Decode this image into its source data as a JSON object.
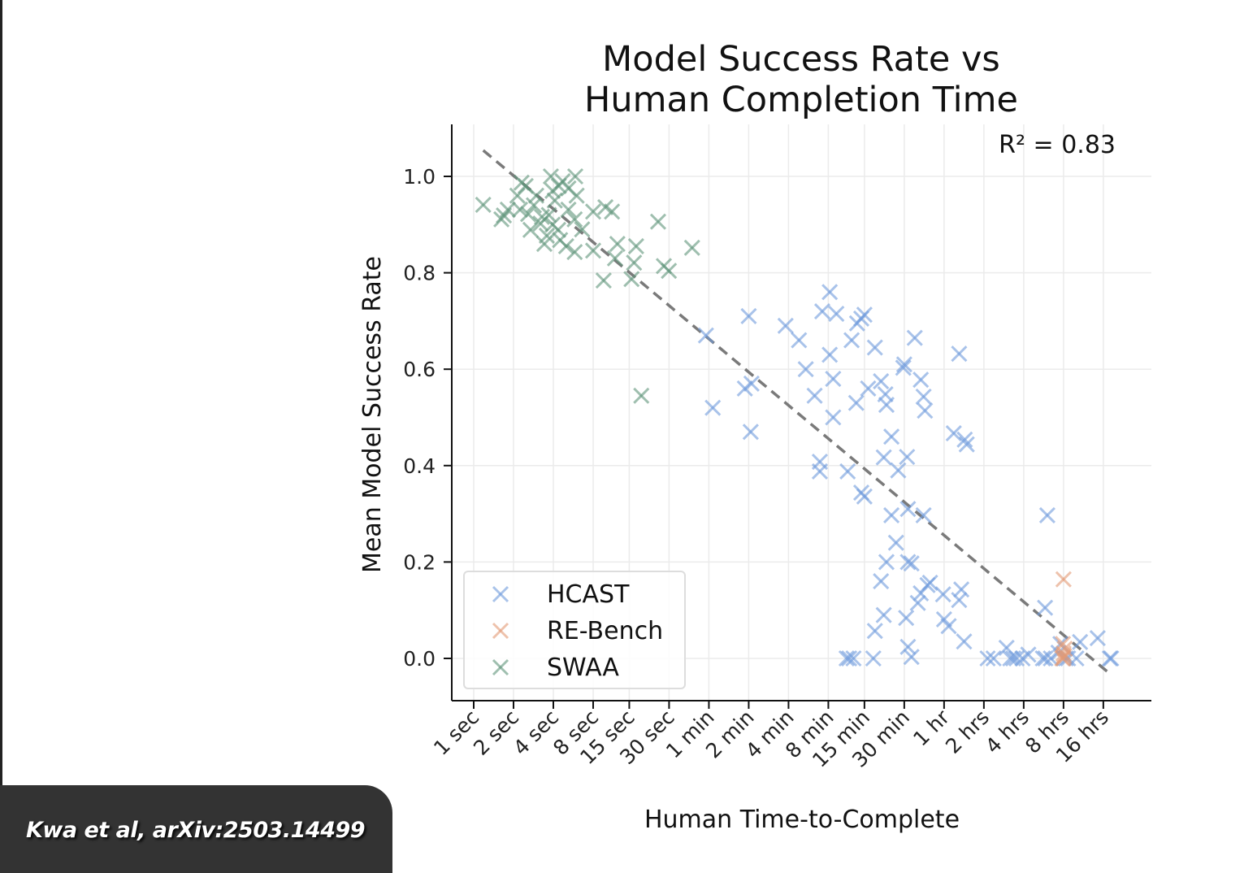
{
  "chart_data": {
    "type": "scatter",
    "title": [
      "Model Success Rate vs",
      "Human Completion Time"
    ],
    "xlabel": "Human Time-to-Complete",
    "ylabel": "Mean Model Success Rate",
    "x_scale": "log2",
    "x_unit": "seconds",
    "xlim": [
      0.68,
      132000
    ],
    "ylim": [
      -0.088,
      1.108
    ],
    "grid": true,
    "x_ticks": [
      {
        "label": "1 sec",
        "value": 1
      },
      {
        "label": "2 sec",
        "value": 2
      },
      {
        "label": "4 sec",
        "value": 4
      },
      {
        "label": "8 sec",
        "value": 8
      },
      {
        "label": "15 sec",
        "value": 15
      },
      {
        "label": "30 sec",
        "value": 30
      },
      {
        "label": "1 min",
        "value": 60
      },
      {
        "label": "2 min",
        "value": 120
      },
      {
        "label": "4 min",
        "value": 240
      },
      {
        "label": "8 min",
        "value": 480
      },
      {
        "label": "15 min",
        "value": 900
      },
      {
        "label": "30 min",
        "value": 1800
      },
      {
        "label": "1 hr",
        "value": 3600
      },
      {
        "label": "2 hrs",
        "value": 7200
      },
      {
        "label": "4 hrs",
        "value": 14400
      },
      {
        "label": "8 hrs",
        "value": 28800
      },
      {
        "label": "16 hrs",
        "value": 57600
      }
    ],
    "y_ticks": [
      {
        "label": "0.0",
        "value": 0
      },
      {
        "label": "0.2",
        "value": 0.2
      },
      {
        "label": "0.4",
        "value": 0.4
      },
      {
        "label": "0.6",
        "value": 0.6
      },
      {
        "label": "0.8",
        "value": 0.8
      },
      {
        "label": "1.0",
        "value": 1.0
      }
    ],
    "annotation": "R² = 0.83",
    "legend": {
      "position": "bottom-left"
    },
    "trendline": {
      "style": "dashed",
      "color": "#7a7a7a",
      "points": [
        [
          1.18,
          1.054
        ],
        [
          66000,
          -0.034
        ]
      ]
    },
    "series": [
      {
        "name": "HCAST",
        "color": "#6f9bdc",
        "x_unit_in_points": "minutes",
        "points": [
          [
            0.95,
            0.67
          ],
          [
            1.07,
            0.52
          ],
          [
            2.0,
            0.71
          ],
          [
            1.87,
            0.56
          ],
          [
            2.1,
            0.57
          ],
          [
            2.07,
            0.47
          ],
          [
            3.8,
            0.69
          ],
          [
            4.8,
            0.66
          ],
          [
            5.4,
            0.6
          ],
          [
            6.3,
            0.545
          ],
          [
            7.2,
            0.72
          ],
          [
            8.2,
            0.76
          ],
          [
            9.2,
            0.715
          ],
          [
            8.2,
            0.63
          ],
          [
            8.7,
            0.58
          ],
          [
            8.7,
            0.5
          ],
          [
            12,
            0.66
          ],
          [
            13,
            0.53
          ],
          [
            13.2,
            0.695
          ],
          [
            14.2,
            0.705
          ],
          [
            15,
            0.713
          ],
          [
            18,
            0.645
          ],
          [
            16,
            0.56
          ],
          [
            20,
            0.575
          ],
          [
            21.6,
            0.548
          ],
          [
            22,
            0.526
          ],
          [
            24,
            0.46
          ],
          [
            21,
            0.417
          ],
          [
            27,
            0.39
          ],
          [
            30,
            0.61
          ],
          [
            29.5,
            0.603
          ],
          [
            31.5,
            0.418
          ],
          [
            32,
            0.31
          ],
          [
            36,
            0.665
          ],
          [
            40,
            0.578
          ],
          [
            42,
            0.543
          ],
          [
            43,
            0.514
          ],
          [
            71,
            0.467
          ],
          [
            78,
            0.632
          ],
          [
            86,
            0.454
          ],
          [
            89,
            0.444
          ],
          [
            6.9,
            0.408
          ],
          [
            6.9,
            0.388
          ],
          [
            11.2,
            0.388
          ],
          [
            14.2,
            0.344
          ],
          [
            15,
            0.336
          ],
          [
            24,
            0.297
          ],
          [
            22,
            0.2
          ],
          [
            26,
            0.24
          ],
          [
            20,
            0.16
          ],
          [
            18,
            0.057
          ],
          [
            21,
            0.09
          ],
          [
            31,
            0.084
          ],
          [
            32,
            0.2
          ],
          [
            34,
            0.197
          ],
          [
            32,
            0.024
          ],
          [
            34,
            0.003
          ],
          [
            42,
            0.297
          ],
          [
            45,
            0.152
          ],
          [
            40,
            0.135
          ],
          [
            38,
            0.115
          ],
          [
            47,
            0.157
          ],
          [
            59,
            0.133
          ],
          [
            60,
            0.081
          ],
          [
            65,
            0.067
          ],
          [
            81,
            0.143
          ],
          [
            78,
            0.121
          ],
          [
            85,
            0.035
          ],
          [
            362,
            0.297
          ],
          [
            348,
            0.105
          ],
          [
            870,
            0.042
          ],
          [
            11,
            0
          ],
          [
            11.5,
            0
          ],
          [
            12.4,
            0
          ],
          [
            17.5,
            0
          ],
          [
            128,
            0
          ],
          [
            142,
            0
          ],
          [
            178,
            0.022
          ],
          [
            190,
            0
          ],
          [
            212,
            0
          ],
          [
            235,
            0
          ],
          [
            260,
            0.008
          ],
          [
            335,
            0
          ],
          [
            385,
            0
          ],
          [
            440,
            0.012
          ],
          [
            520,
            0
          ],
          [
            600,
            0
          ],
          [
            640,
            0.034
          ],
          [
            1075,
            0
          ],
          [
            1100,
            0
          ],
          [
            200,
            0
          ],
          [
            350,
            0
          ],
          [
            455,
            0.03
          ],
          [
            500,
            0
          ]
        ]
      },
      {
        "name": "RE-Bench",
        "color": "#e39a74",
        "x_unit_in_points": "minutes",
        "points": [
          [
            480,
            0.164
          ],
          [
            470,
            0
          ],
          [
            480,
            0.01
          ],
          [
            490,
            0.02
          ],
          [
            475,
            0.03
          ],
          [
            485,
            0.005
          ],
          [
            480,
            0
          ]
        ]
      },
      {
        "name": "SWAA",
        "color": "#5f9479",
        "x_unit_in_points": "seconds",
        "points": [
          [
            1.18,
            0.941
          ],
          [
            1.81,
            0.931
          ],
          [
            1.69,
            0.919
          ],
          [
            1.62,
            0.911
          ],
          [
            2.47,
            0.98
          ],
          [
            2.3,
            0.987
          ],
          [
            3.83,
            1.0
          ],
          [
            5.86,
            1.0
          ],
          [
            4.4,
            0.98
          ],
          [
            5.2,
            0.975
          ],
          [
            3.95,
            0.97
          ],
          [
            6.0,
            0.96
          ],
          [
            2.85,
            0.94
          ],
          [
            2.58,
            0.922
          ],
          [
            3.28,
            0.916
          ],
          [
            3.95,
            0.9
          ],
          [
            3.57,
            0.877
          ],
          [
            4.35,
            0.889
          ],
          [
            5.8,
            0.911
          ],
          [
            6.6,
            0.89
          ],
          [
            3.42,
            0.86
          ],
          [
            5.0,
            0.855
          ],
          [
            5.8,
            0.843
          ],
          [
            8.0,
            0.927
          ],
          [
            9.9,
            0.936
          ],
          [
            11.1,
            0.927
          ],
          [
            24.8,
            0.906
          ],
          [
            44.8,
            0.852
          ],
          [
            8.0,
            0.846
          ],
          [
            12.2,
            0.86
          ],
          [
            16.9,
            0.855
          ],
          [
            11.7,
            0.83
          ],
          [
            16.3,
            0.821
          ],
          [
            27.4,
            0.814
          ],
          [
            29.9,
            0.804
          ],
          [
            9.6,
            0.784
          ],
          [
            15.6,
            0.787
          ],
          [
            2.69,
            0.889
          ],
          [
            2.14,
            0.96
          ],
          [
            18.5,
            0.545
          ],
          [
            2.97,
            0.96
          ],
          [
            4.5,
            0.868
          ],
          [
            3.2,
            0.902
          ],
          [
            5.2,
            0.931
          ],
          [
            2.24,
            0.931
          ],
          [
            4.1,
            0.95
          ],
          [
            4.7,
            0.99
          ],
          [
            3.7,
            0.92
          ]
        ]
      }
    ]
  },
  "citation": "Kwa et al, arXiv:2503.14499"
}
